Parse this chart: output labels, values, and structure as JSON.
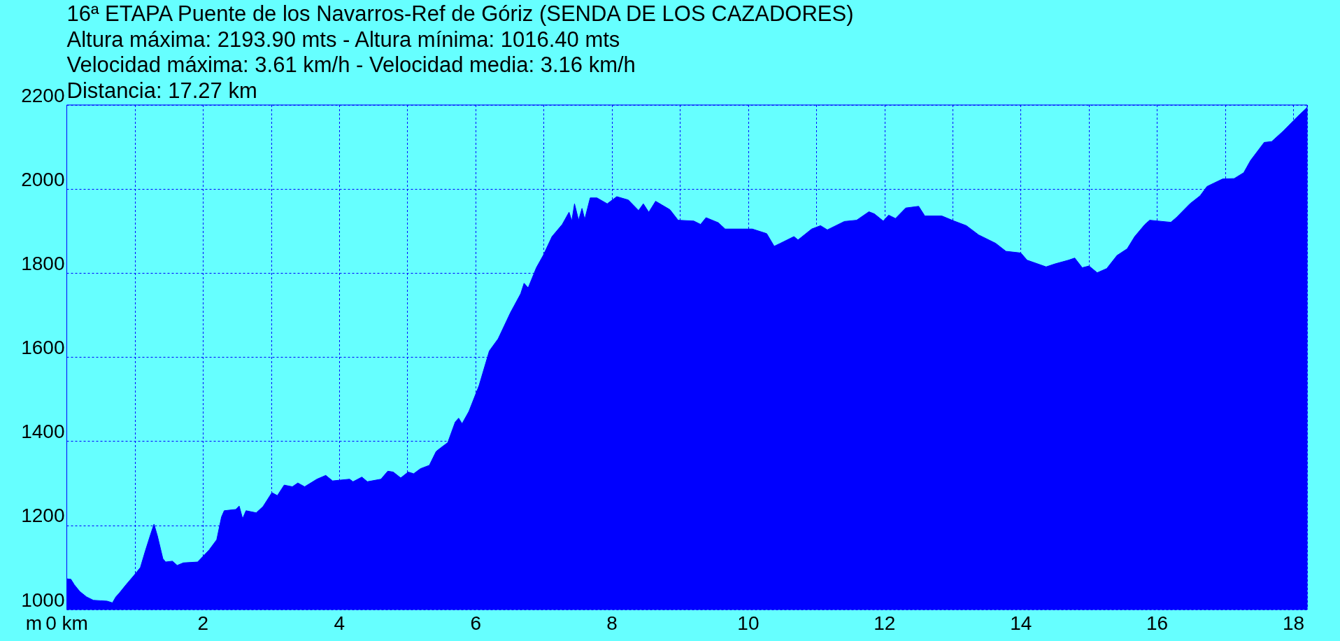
{
  "chart_data": {
    "type": "area",
    "title": "16ª ETAPA Puente de los Navarros-Ref de Góriz (SENDA DE LOS CAZADORES)",
    "annotations": [
      "Altura máxima: 2193.90 mts - Altura mínima: 1016.40 mts",
      "Velocidad máxima: 3.61 km/h - Velocidad media: 3.16 km/h",
      "Distancia: 17.27 km"
    ],
    "ylabel": "m",
    "x": [
      0,
      0.06,
      0.11,
      0.19,
      0.29,
      0.39,
      0.49,
      0.59,
      0.67,
      0.72,
      0.77,
      0.87,
      0.98,
      1.08,
      1.15,
      1.23,
      1.28,
      1.33,
      1.41,
      1.45,
      1.55,
      1.62,
      1.71,
      1.92,
      1.99,
      2.09,
      2.2,
      2.27,
      2.31,
      2.48,
      2.53,
      2.58,
      2.63,
      2.78,
      2.88,
      3.01,
      3.09,
      3.19,
      3.31,
      3.39,
      3.49,
      3.67,
      3.8,
      3.9,
      4.15,
      4.2,
      4.33,
      4.41,
      4.61,
      4.71,
      4.79,
      4.9,
      5.01,
      5.09,
      5.19,
      5.32,
      5.42,
      5.49,
      5.59,
      5.7,
      5.75,
      5.8,
      5.9,
      6.05,
      6.2,
      6.33,
      6.51,
      6.66,
      6.71,
      6.77,
      6.89,
      6.99,
      7.12,
      7.27,
      7.37,
      7.41,
      7.45,
      7.51,
      7.56,
      7.6,
      7.68,
      7.78,
      7.93,
      8.07,
      8.24,
      8.39,
      8.46,
      8.54,
      8.64,
      8.85,
      8.97,
      9.2,
      9.3,
      9.38,
      9.56,
      9.66,
      9.91,
      10.06,
      10.27,
      10.38,
      10.47,
      10.67,
      10.73,
      10.93,
      11.06,
      11.16,
      11.41,
      11.59,
      11.77,
      11.85,
      11.98,
      12.06,
      12.16,
      12.31,
      12.5,
      12.59,
      12.84,
      13.02,
      13.2,
      13.38,
      13.63,
      13.78,
      14,
      14.09,
      14.37,
      14.5,
      14.7,
      14.79,
      14.9,
      15,
      15.12,
      15.26,
      15.41,
      15.56,
      15.67,
      15.82,
      15.89,
      16.2,
      16.28,
      16.48,
      16.63,
      16.73,
      16.83,
      16.96,
      17.13,
      17.27,
      17.37,
      17.57,
      17.68,
      17.85,
      18.05,
      18.2
    ],
    "values": [
      1073,
      1072,
      1059,
      1043,
      1030,
      1022,
      1021,
      1020,
      1016,
      1030,
      1039,
      1059,
      1080,
      1100,
      1138,
      1179,
      1203,
      1175,
      1121,
      1113,
      1115,
      1105,
      1111,
      1113,
      1125,
      1142,
      1166,
      1220,
      1235,
      1238,
      1246,
      1216,
      1235,
      1230,
      1245,
      1278,
      1271,
      1296,
      1292,
      1301,
      1292,
      1310,
      1319,
      1306,
      1310,
      1304,
      1315,
      1304,
      1310,
      1329,
      1327,
      1313,
      1327,
      1323,
      1335,
      1343,
      1376,
      1385,
      1397,
      1446,
      1455,
      1442,
      1471,
      1533,
      1615,
      1644,
      1706,
      1751,
      1776,
      1765,
      1813,
      1842,
      1887,
      1916,
      1945,
      1924,
      1965,
      1926,
      1954,
      1928,
      1979,
      1979,
      1965,
      1982,
      1974,
      1949,
      1965,
      1945,
      1971,
      1951,
      1926,
      1924,
      1916,
      1932,
      1920,
      1905,
      1905,
      1905,
      1894,
      1864,
      1871,
      1887,
      1879,
      1905,
      1913,
      1903,
      1923,
      1926,
      1946,
      1941,
      1924,
      1938,
      1930,
      1955,
      1959,
      1936,
      1936,
      1924,
      1913,
      1891,
      1871,
      1852,
      1848,
      1831,
      1815,
      1822,
      1831,
      1836,
      1813,
      1817,
      1801,
      1811,
      1842,
      1858,
      1887,
      1916,
      1926,
      1921,
      1932,
      1965,
      1984,
      2006,
      2014,
      2024,
      2025,
      2039,
      2068,
      2111,
      2113,
      2138,
      2171,
      2194
    ],
    "color": "#0000ff",
    "xlim": [
      0,
      18.2
    ],
    "xticks": [
      {
        "value": 0,
        "label": "0 km"
      },
      {
        "value": 1,
        "label": null
      },
      2,
      {
        "value": 3,
        "label": null
      },
      4,
      {
        "value": 5,
        "label": null
      },
      6,
      {
        "value": 7,
        "label": null
      },
      8,
      {
        "value": 9,
        "label": null
      },
      10,
      {
        "value": 11,
        "label": null
      },
      12,
      {
        "value": 13,
        "label": null
      },
      14,
      {
        "value": 15,
        "label": null
      },
      16,
      {
        "value": 17,
        "label": null
      },
      18
    ],
    "ylim": [
      1000,
      2200
    ],
    "yticks": [
      1000,
      1200,
      1400,
      1600,
      1800,
      2000,
      2200
    ],
    "grid": true
  }
}
